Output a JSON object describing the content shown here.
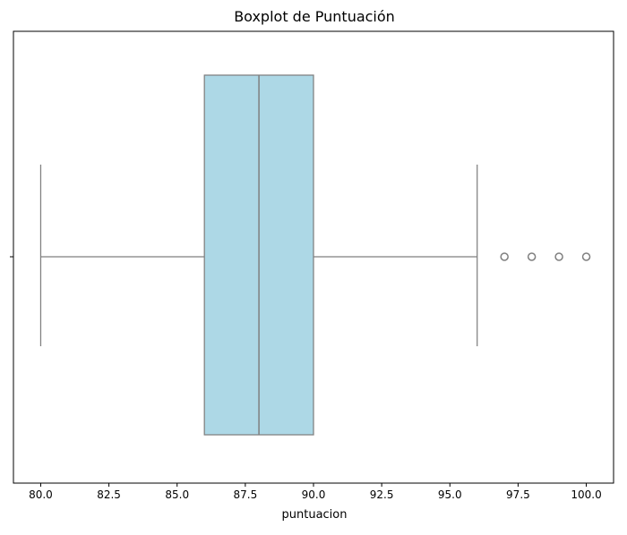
{
  "chart_data": {
    "type": "boxplot",
    "title": "Boxplot de Puntuación",
    "xlabel": "puntuacion",
    "ylabel": "",
    "orientation": "horizontal",
    "xlim": [
      79.0,
      101.0
    ],
    "xticks": [
      80.0,
      82.5,
      85.0,
      87.5,
      90.0,
      92.5,
      95.0,
      97.5,
      100.0
    ],
    "xtick_labels": [
      "80.0",
      "82.5",
      "85.0",
      "87.5",
      "90.0",
      "92.5",
      "95.0",
      "97.5",
      "100.0"
    ],
    "grid": false,
    "box": {
      "whisker_low": 80,
      "q1": 86,
      "median": 88,
      "q3": 90,
      "whisker_high": 96,
      "outliers": [
        97,
        98,
        99,
        100
      ]
    },
    "colors": {
      "box_fill": "#add8e6",
      "line": "#7f7f7f",
      "axes": "#000000"
    }
  }
}
